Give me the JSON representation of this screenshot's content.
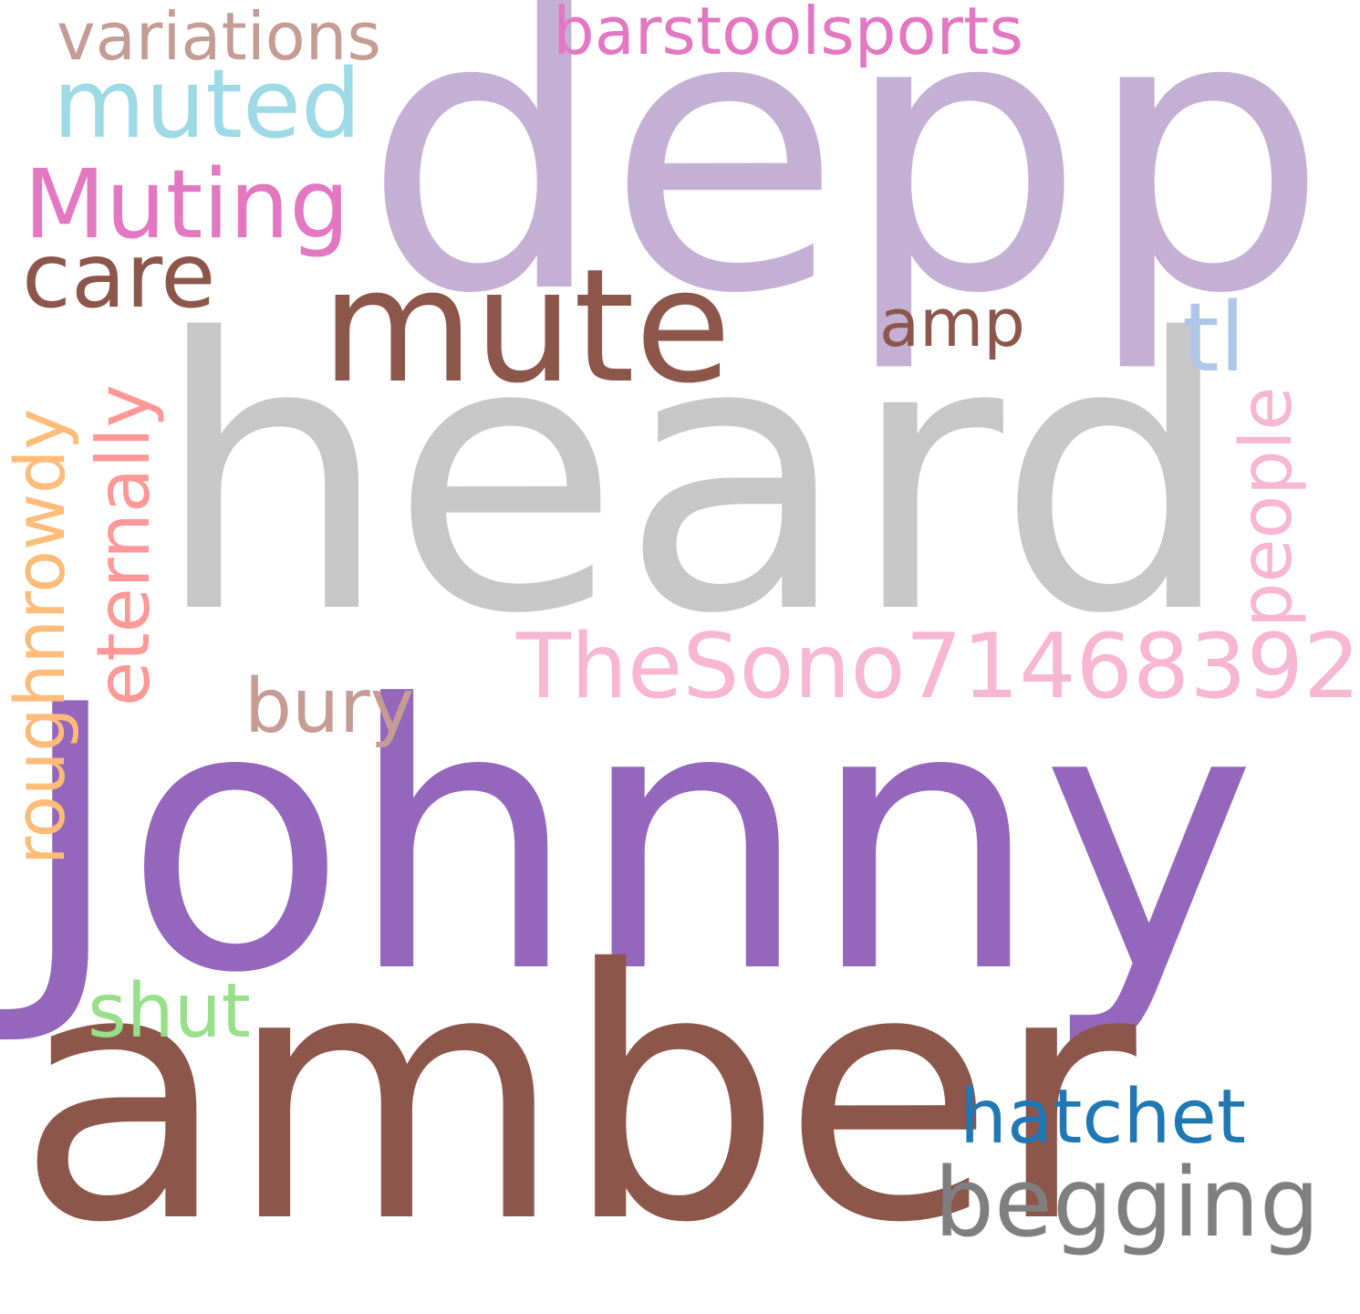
{
  "words": {
    "depp": {
      "text": "depp",
      "color": "#c5b0d5"
    },
    "heard": {
      "text": "heard",
      "color": "#c7c7c7"
    },
    "johnny": {
      "text": "Johnny",
      "color": "#9467bd"
    },
    "amber": {
      "text": "amber",
      "color": "#8c564b"
    },
    "mute": {
      "text": "mute",
      "color": "#8c564b"
    },
    "thesono71468392": {
      "text": "TheSono71468392",
      "color": "#f7b6d2"
    },
    "muting": {
      "text": "Muting",
      "color": "#e377c2"
    },
    "muted": {
      "text": "muted",
      "color": "#9edae5"
    },
    "barstoolsports": {
      "text": "barstoolsports",
      "color": "#e377c2"
    },
    "variations": {
      "text": "variations",
      "color": "#c49c94"
    },
    "care": {
      "text": "care",
      "color": "#8c564b"
    },
    "begging": {
      "text": "begging",
      "color": "#7f7f7f"
    },
    "hatchet": {
      "text": "hatchet",
      "color": "#1f77b4"
    },
    "shut": {
      "text": "shut",
      "color": "#98df8a"
    },
    "bury": {
      "text": "bury",
      "color": "#c49c94"
    },
    "amp": {
      "text": "amp",
      "color": "#8c564b"
    },
    "tl": {
      "text": "tl",
      "color": "#aec7e8"
    },
    "people": {
      "text": "people",
      "color": "#f7b6d2"
    },
    "eternally": {
      "text": "eternally",
      "color": "#ff9896"
    },
    "roughnrowdy": {
      "text": "roughnrowdy",
      "color": "#ffbb78"
    }
  }
}
